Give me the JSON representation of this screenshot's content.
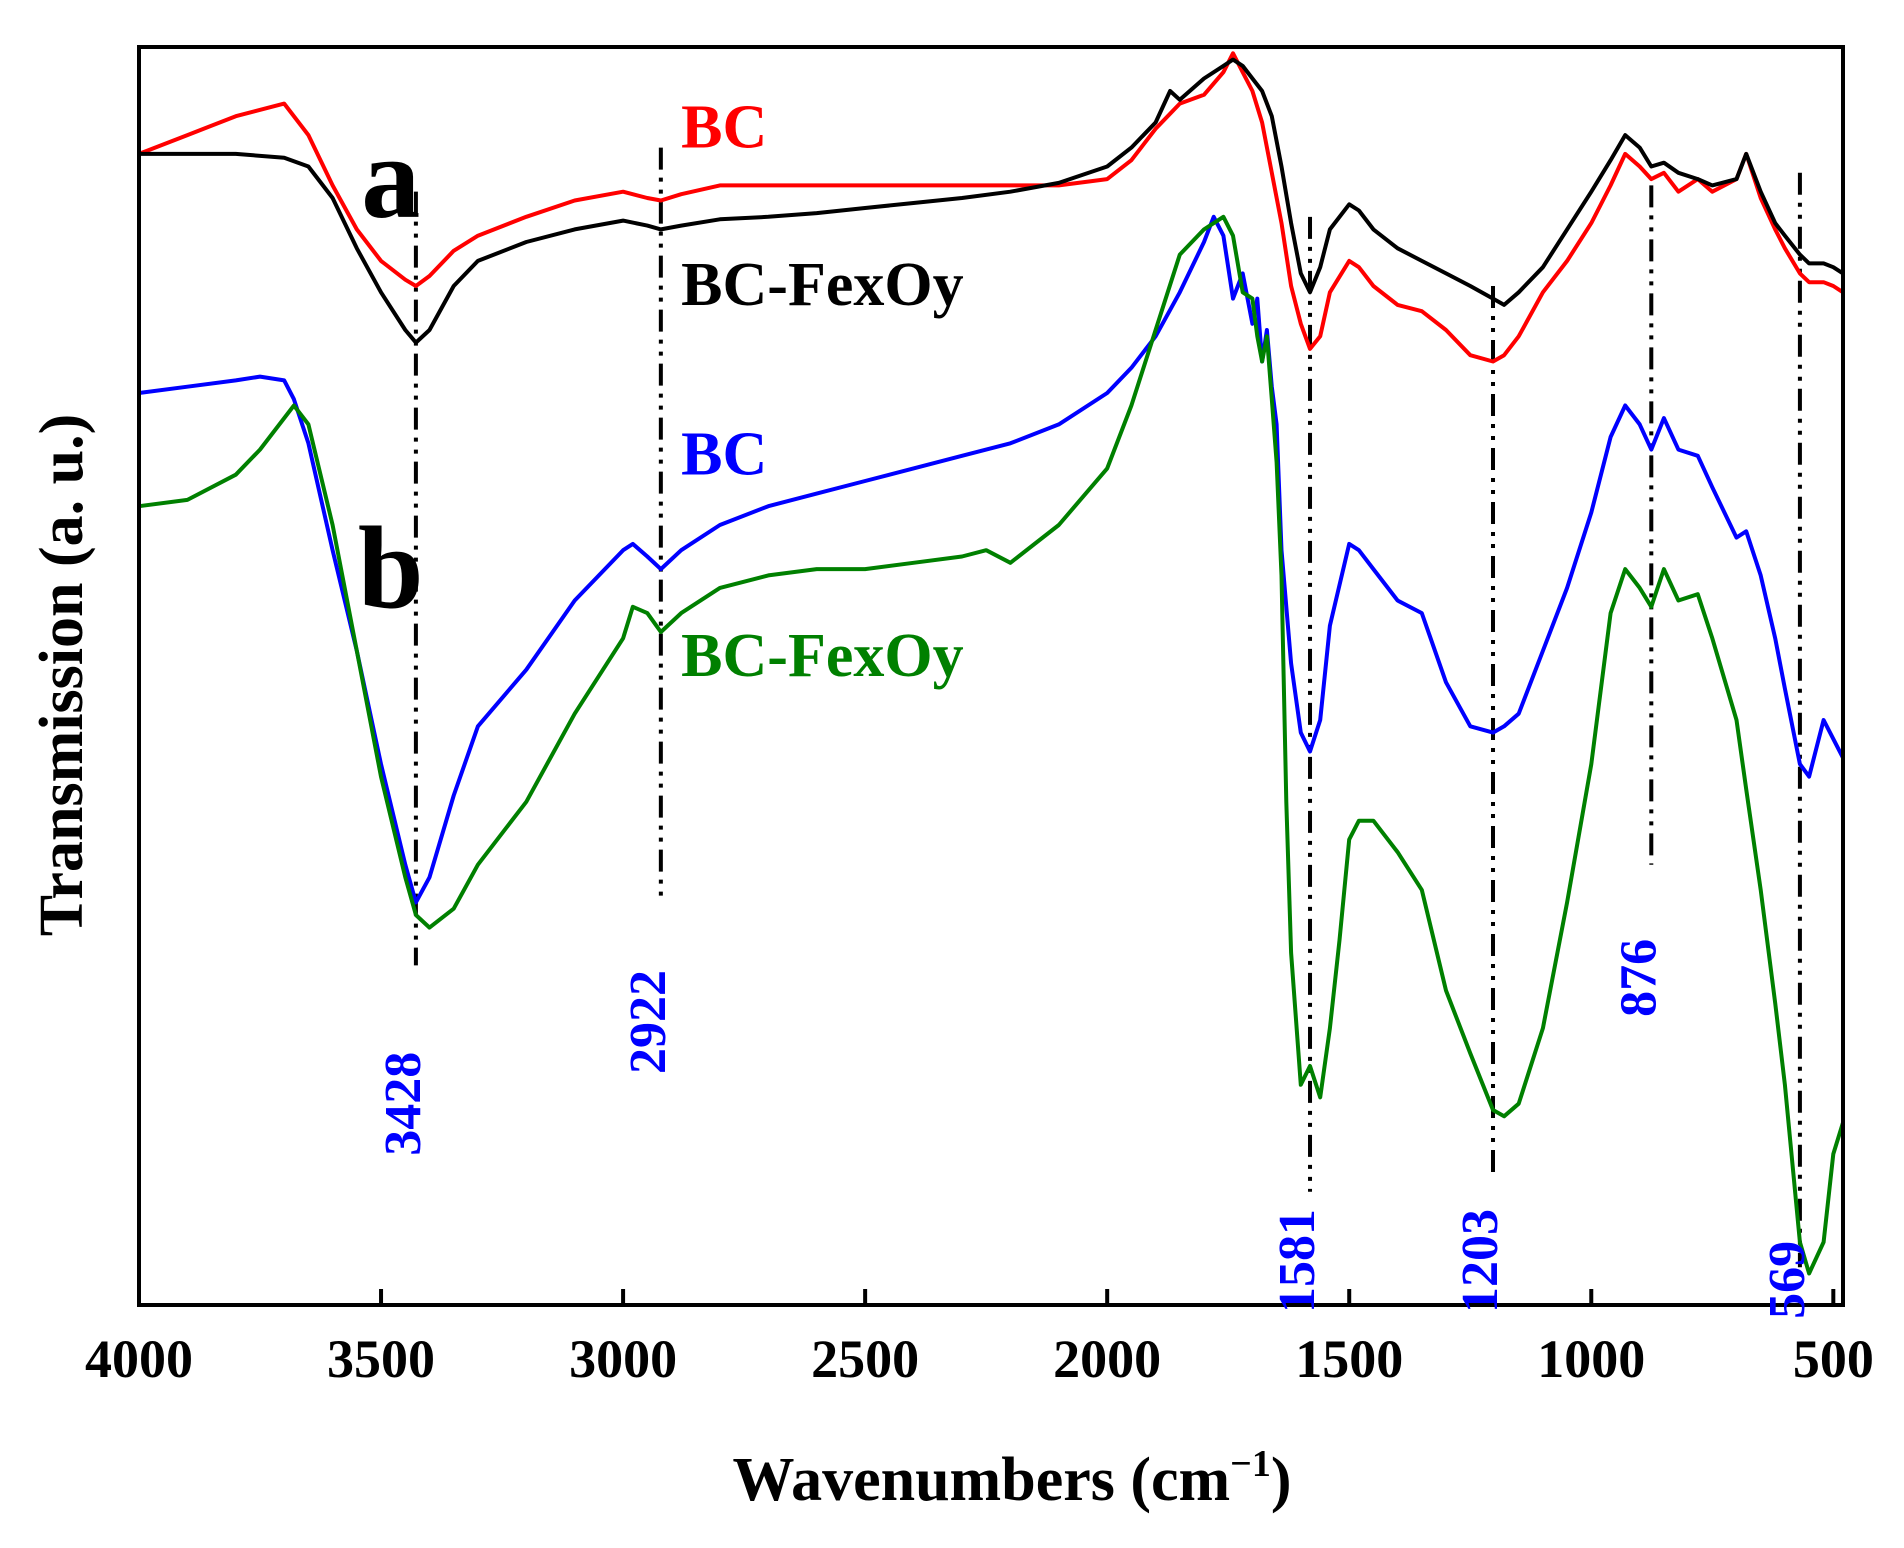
{
  "chart_data": {
    "type": "line",
    "xlabel": "Wavenumbers (cm",
    "xlabel_sup": "−1",
    "xlabel_close": ")",
    "ylabel": "Transmission (a. u.)",
    "xlim": [
      4000,
      480
    ],
    "ylim": [
      0,
      100
    ],
    "xticks": [
      4000,
      3500,
      3000,
      2500,
      2000,
      1500,
      1000,
      500
    ],
    "xtick_labels": [
      "4000",
      "3500",
      "3000",
      "2500",
      "2000",
      "1500",
      "1000",
      "500"
    ],
    "grid": false,
    "panel_labels": [
      {
        "text": "a",
        "x": 3480,
        "y": 86.5
      },
      {
        "text": "b",
        "x": 3480,
        "y": 55.5
      }
    ],
    "series_labels": [
      {
        "text": "BC",
        "color": "#ff0000",
        "x": 2880,
        "y": 92
      },
      {
        "text": "BC-FexOy",
        "color": "#000000",
        "x": 2880,
        "y": 79.5
      },
      {
        "text": "BC",
        "color": "#0000ff",
        "x": 2880,
        "y": 66
      },
      {
        "text": "BC-FexOy",
        "color": "#008000",
        "x": 2880,
        "y": 50
      }
    ],
    "peak_lines": [
      {
        "x": 3428,
        "y_top": 88.5,
        "y_bottom": 27,
        "label": "3428",
        "label_y": 16
      },
      {
        "x": 2922,
        "y_top": 92,
        "y_bottom": 32,
        "label": "2922",
        "label_y": 22.5
      },
      {
        "x": 1581,
        "y_top": 86.5,
        "y_bottom": 9,
        "label": "1581",
        "label_y": 3.5
      },
      {
        "x": 1203,
        "y_top": 81,
        "y_bottom": 10,
        "label": "1203",
        "label_y": 3.5
      },
      {
        "x": 876,
        "y_top": 89,
        "y_bottom": 35,
        "label": "876",
        "label_y": 26
      },
      {
        "x": 569,
        "y_top": 90,
        "y_bottom": 3,
        "label": "569",
        "label_y": 2
      }
    ],
    "peak_label_color": "#0000ff",
    "series": [
      {
        "name": "BC (a)",
        "color": "#ff0000",
        "x": [
          4000,
          3900,
          3800,
          3700,
          3650,
          3600,
          3550,
          3500,
          3450,
          3428,
          3400,
          3350,
          3300,
          3200,
          3100,
          3000,
          2950,
          2922,
          2880,
          2800,
          2700,
          2600,
          2500,
          2400,
          2300,
          2200,
          2100,
          2000,
          1950,
          1900,
          1850,
          1800,
          1760,
          1740,
          1720,
          1700,
          1680,
          1660,
          1640,
          1620,
          1600,
          1581,
          1560,
          1540,
          1500,
          1480,
          1450,
          1400,
          1350,
          1300,
          1250,
          1203,
          1180,
          1150,
          1100,
          1050,
          1000,
          960,
          930,
          900,
          876,
          850,
          820,
          780,
          750,
          700,
          680,
          650,
          620,
          600,
          569,
          550,
          520,
          500,
          480
        ],
        "values": [
          91.5,
          93,
          94.5,
          95.5,
          93,
          89,
          85.5,
          83,
          81.5,
          81,
          81.8,
          83.8,
          85,
          86.5,
          87.8,
          88.5,
          88,
          87.8,
          88.3,
          89,
          89,
          89,
          89,
          89,
          89,
          89,
          89,
          89.5,
          91,
          93.5,
          95.5,
          96.2,
          98,
          99.5,
          98,
          96.5,
          94,
          90,
          86,
          81,
          78,
          76,
          77,
          80.5,
          83,
          82.5,
          81,
          79.5,
          79,
          77.5,
          75.5,
          75,
          75.5,
          77,
          80.5,
          83,
          86,
          89,
          91.5,
          90.5,
          89.5,
          90,
          88.5,
          89.5,
          88.5,
          89.5,
          91.5,
          88,
          85.5,
          84,
          82,
          81.3,
          81.3,
          81,
          80.5
        ]
      },
      {
        "name": "BC-FexOy (a)",
        "color": "#000000",
        "x": [
          4000,
          3900,
          3800,
          3700,
          3650,
          3600,
          3550,
          3500,
          3450,
          3428,
          3400,
          3350,
          3300,
          3200,
          3100,
          3000,
          2950,
          2922,
          2880,
          2800,
          2700,
          2600,
          2500,
          2400,
          2300,
          2200,
          2100,
          2000,
          1950,
          1900,
          1870,
          1850,
          1800,
          1760,
          1740,
          1720,
          1700,
          1680,
          1660,
          1640,
          1620,
          1600,
          1581,
          1560,
          1540,
          1500,
          1480,
          1450,
          1400,
          1350,
          1300,
          1250,
          1203,
          1180,
          1150,
          1100,
          1050,
          1000,
          960,
          930,
          900,
          876,
          850,
          820,
          780,
          750,
          700,
          680,
          650,
          620,
          600,
          569,
          550,
          520,
          500,
          480
        ],
        "values": [
          91.5,
          91.5,
          91.5,
          91.2,
          90.5,
          88,
          84,
          80.5,
          77.5,
          76.5,
          77.5,
          81,
          83,
          84.5,
          85.5,
          86.2,
          85.8,
          85.5,
          85.8,
          86.3,
          86.5,
          86.8,
          87.2,
          87.6,
          88,
          88.5,
          89.2,
          90.5,
          92,
          94,
          96.5,
          95.8,
          97.5,
          98.5,
          99,
          98.5,
          97.5,
          96.5,
          94.5,
          90.5,
          86,
          82,
          80.5,
          82.5,
          85.5,
          87.5,
          87,
          85.5,
          84,
          83,
          82,
          81,
          80,
          79.5,
          80.5,
          82.5,
          85.5,
          88.5,
          91,
          93,
          92,
          90.5,
          90.8,
          90,
          89.5,
          89,
          89.5,
          91.5,
          88.5,
          86,
          85,
          83.5,
          82.8,
          82.8,
          82.5,
          82
        ]
      },
      {
        "name": "BC (b)",
        "color": "#0000ff",
        "x": [
          4000,
          3900,
          3800,
          3750,
          3700,
          3680,
          3650,
          3600,
          3550,
          3500,
          3450,
          3428,
          3400,
          3350,
          3300,
          3200,
          3100,
          3000,
          2980,
          2950,
          2922,
          2880,
          2800,
          2700,
          2600,
          2500,
          2400,
          2300,
          2200,
          2100,
          2000,
          1950,
          1900,
          1850,
          1800,
          1780,
          1760,
          1740,
          1720,
          1700,
          1690,
          1680,
          1670,
          1660,
          1650,
          1640,
          1620,
          1600,
          1581,
          1560,
          1540,
          1500,
          1480,
          1450,
          1400,
          1350,
          1300,
          1250,
          1203,
          1180,
          1150,
          1100,
          1050,
          1000,
          960,
          930,
          900,
          876,
          850,
          820,
          780,
          750,
          700,
          680,
          650,
          620,
          600,
          569,
          550,
          520,
          500,
          480
        ],
        "values": [
          72.5,
          73,
          73.5,
          73.8,
          73.5,
          72,
          68.5,
          60,
          52,
          43,
          35,
          32,
          34,
          40.5,
          46,
          50.5,
          56,
          60,
          60.5,
          59.5,
          58.5,
          60,
          62,
          63.5,
          64.5,
          65.5,
          66.5,
          67.5,
          68.5,
          70,
          72.5,
          74.5,
          77,
          80.5,
          84.5,
          86.5,
          85,
          80,
          82,
          78,
          80,
          75,
          77.5,
          73,
          70,
          60,
          51,
          45.5,
          44,
          46.5,
          54,
          60.5,
          60,
          58.5,
          56,
          55,
          49.5,
          46,
          45.5,
          46,
          47,
          52,
          57,
          63,
          69,
          71.5,
          70,
          68,
          70.5,
          68,
          67.5,
          65,
          61,
          61.5,
          58,
          53,
          49,
          43,
          42,
          46.5,
          45,
          43.5
        ]
      },
      {
        "name": "BC-FexOy (b)",
        "color": "#008000",
        "x": [
          4000,
          3900,
          3800,
          3750,
          3700,
          3680,
          3650,
          3600,
          3550,
          3500,
          3450,
          3428,
          3400,
          3350,
          3300,
          3200,
          3100,
          3000,
          2980,
          2950,
          2922,
          2880,
          2800,
          2700,
          2600,
          2500,
          2400,
          2300,
          2250,
          2200,
          2100,
          2000,
          1950,
          1900,
          1850,
          1800,
          1760,
          1740,
          1720,
          1700,
          1690,
          1680,
          1670,
          1660,
          1650,
          1640,
          1630,
          1620,
          1600,
          1581,
          1560,
          1540,
          1520,
          1500,
          1480,
          1450,
          1400,
          1350,
          1300,
          1250,
          1203,
          1180,
          1150,
          1100,
          1050,
          1000,
          960,
          930,
          900,
          876,
          850,
          820,
          780,
          750,
          700,
          680,
          650,
          620,
          600,
          569,
          550,
          520,
          500,
          480
        ],
        "values": [
          63.5,
          64,
          66,
          68,
          70.5,
          71.5,
          70,
          62,
          52,
          42,
          34,
          31,
          30,
          31.5,
          35,
          40,
          47,
          53,
          55.5,
          55,
          53.5,
          55,
          57,
          58,
          58.5,
          58.5,
          59,
          59.5,
          60,
          59,
          62,
          66.5,
          71.5,
          77.5,
          83.5,
          85.5,
          86.5,
          85,
          80.5,
          80,
          77,
          75,
          77,
          72,
          67,
          58,
          40,
          28,
          17.5,
          19,
          16.5,
          22,
          29,
          37,
          38.5,
          38.5,
          36,
          33,
          25,
          20,
          15.5,
          15,
          16,
          22,
          32,
          43,
          55,
          58.5,
          57,
          55.5,
          58.5,
          56,
          56.5,
          53,
          46.5,
          41,
          33,
          24,
          17.5,
          5,
          2.5,
          5,
          12,
          14.5
        ]
      }
    ]
  }
}
